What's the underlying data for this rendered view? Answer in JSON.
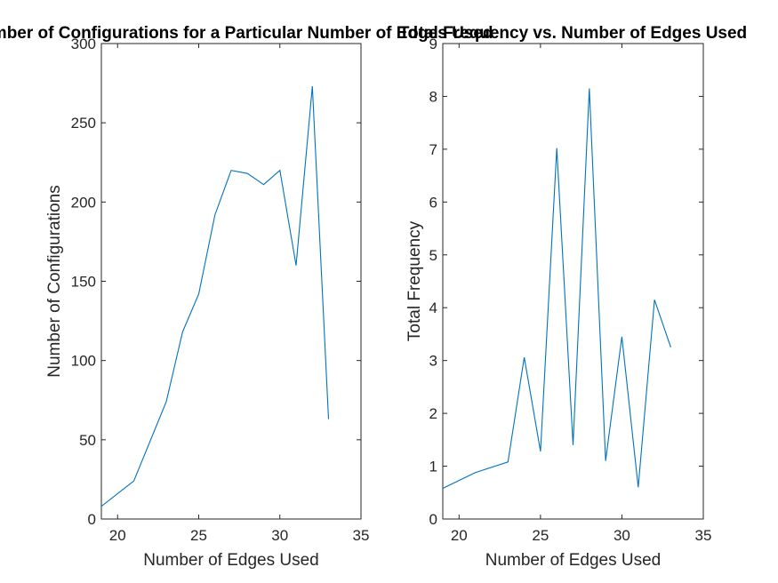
{
  "figure": {
    "background": "#ffffff",
    "line_color": "#0072bd",
    "axis_color": "#262626"
  },
  "chart_data": [
    {
      "type": "line",
      "title": "Number of Configurations for a Particular Number of Edges Used",
      "xlabel": "Number of Edges Used",
      "ylabel": "Number of Configurations",
      "xlim": [
        19,
        35
      ],
      "ylim": [
        0,
        300
      ],
      "xticks": [
        "20",
        "25",
        "30",
        "35"
      ],
      "yticks": [
        "0",
        "50",
        "100",
        "150",
        "200",
        "250",
        "300"
      ],
      "grid": false,
      "series": [
        {
          "x": [
            19,
            21,
            23,
            24,
            25,
            26,
            27,
            28,
            29,
            30,
            31,
            32,
            33
          ],
          "values": [
            8,
            24,
            74,
            118,
            142,
            192,
            220,
            218,
            211,
            220,
            160,
            273,
            63
          ]
        }
      ]
    },
    {
      "type": "line",
      "title": "Total Frequency vs. Number of Edges Used",
      "xlabel": "Number of Edges Used",
      "ylabel": "Total Frequency",
      "xlim": [
        19,
        35
      ],
      "ylim": [
        0,
        9
      ],
      "xticks": [
        "20",
        "25",
        "30",
        "35"
      ],
      "yticks": [
        "0",
        "1",
        "2",
        "3",
        "4",
        "5",
        "6",
        "7",
        "8",
        "9"
      ],
      "grid": false,
      "series": [
        {
          "x": [
            19,
            21,
            23,
            24,
            25,
            26,
            27,
            28,
            29,
            30,
            31,
            32,
            33
          ],
          "values": [
            0.58,
            0.88,
            1.08,
            3.06,
            1.28,
            7.02,
            1.4,
            8.15,
            1.1,
            3.45,
            0.6,
            4.15,
            3.25
          ]
        }
      ]
    }
  ]
}
